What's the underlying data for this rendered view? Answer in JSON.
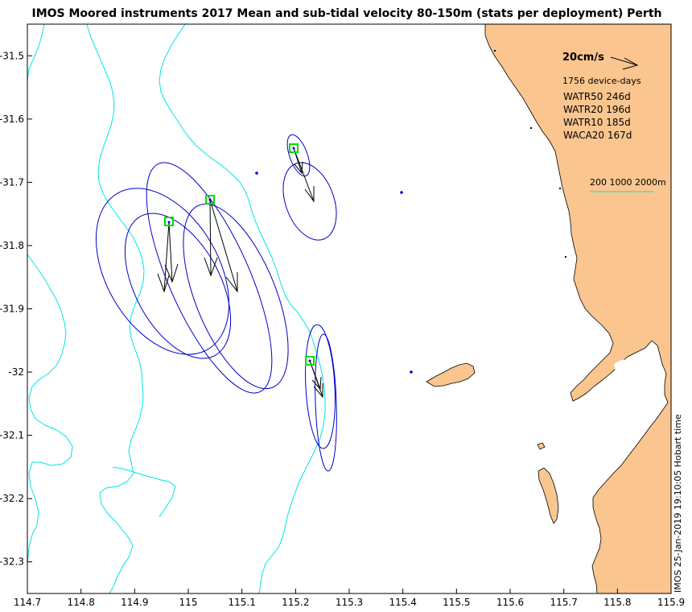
{
  "chart_data": {
    "type": "map-vector",
    "title": "IMOS Moored instruments 2017 Mean and sub-tidal velocity 80-150m (stats per deployment) Perth",
    "xlim": [
      114.7,
      115.9
    ],
    "ylim": [
      -32.35,
      -31.45
    ],
    "x_ticks": [
      "114.7",
      "114.8",
      "114.9",
      "115",
      "115.1",
      "115.2",
      "115.3",
      "115.4",
      "115.5",
      "115.6",
      "115.7",
      "115.8",
      "115.9"
    ],
    "y_ticks": [
      "-31.5",
      "-31.6",
      "-31.7",
      "-31.8",
      "-31.9",
      "-32",
      "-32.1",
      "-32.2",
      "-32.3"
    ],
    "scale_label": "20cm/s",
    "device_days": "1756 device-days",
    "deployments": [
      {
        "label": "WATR50 246d",
        "lon": 114.965,
        "lat": -31.763
      },
      {
        "label": "WATR20 196d",
        "lon": 115.042,
        "lat": -31.726
      },
      {
        "label": "WATR10 185d",
        "lon": 115.197,
        "lat": -31.646
      },
      {
        "label": "WACA20 167d",
        "lon": 115.228,
        "lat": -31.982
      }
    ],
    "isobath_legend": "200 1000 2000m",
    "timestamp": "IMOS 25-Jan-2019 19:10:05 Hobart time"
  },
  "colors": {
    "land": "#fac58f",
    "isobath": "#00e5e5",
    "ellipse": "#0000c8",
    "arrow": "#000000",
    "mooring_box": "#00dd00"
  }
}
